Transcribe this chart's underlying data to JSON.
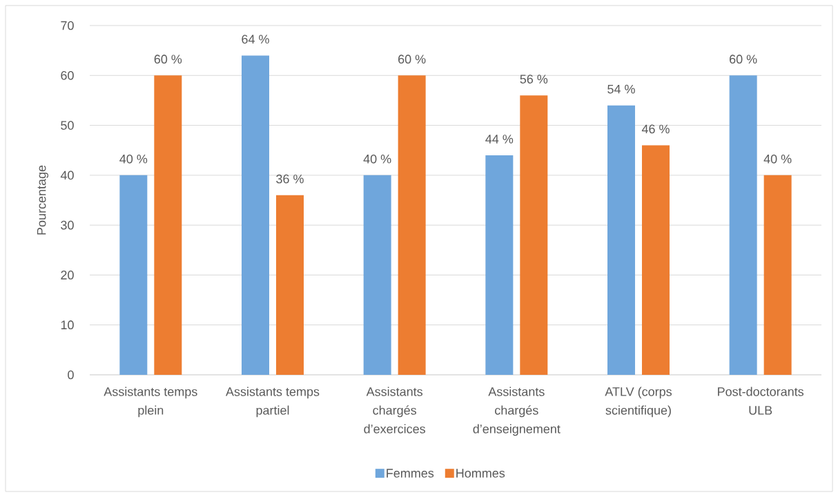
{
  "chart_data": {
    "type": "bar",
    "ylabel": "Pourcentage",
    "categories": [
      "Assistants temps plein",
      "Assistants temps partiel",
      "Assistants chargés d’exercices",
      "Assistants chargés d’enseignement",
      "ATLV (corps scientifique)",
      "Post-doctorants ULB"
    ],
    "series": [
      {
        "name": "Femmes",
        "color": "#6fa6dc",
        "values": [
          40,
          64,
          40,
          44,
          54,
          60
        ],
        "value_labels": [
          "40 %",
          "64 %",
          "40 %",
          "44 %",
          "54 %",
          "60 %"
        ]
      },
      {
        "name": "Hommes",
        "color": "#ed7d31",
        "values": [
          60,
          36,
          60,
          56,
          46,
          40
        ],
        "value_labels": [
          "60 %",
          "36 %",
          "60 %",
          "56 %",
          "46 %",
          "40 %"
        ]
      }
    ],
    "ylim": [
      0,
      70
    ],
    "yticks": [
      0,
      10,
      20,
      30,
      40,
      50,
      60,
      70
    ],
    "grid": "y",
    "legend": "bottom"
  }
}
